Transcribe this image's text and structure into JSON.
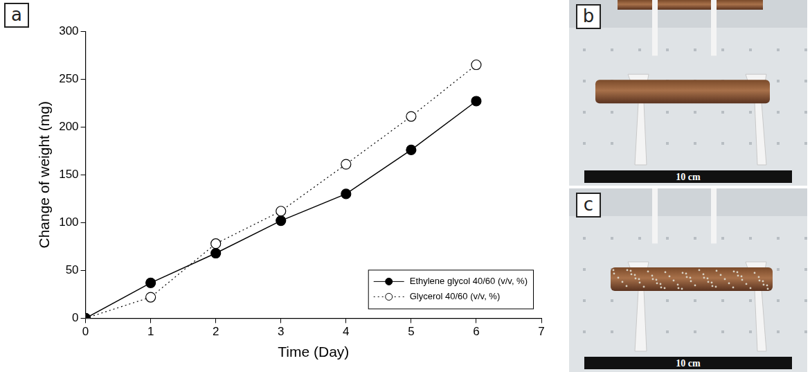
{
  "chart_data": {
    "type": "line",
    "x_label": "Time (Day)",
    "y_label": "Change of weight (mg)",
    "x": [
      0,
      1,
      2,
      3,
      4,
      5,
      6
    ],
    "series": [
      {
        "name": "Ethylene glycol 40/60 (v/v, %)",
        "color": "#000000",
        "marker": "filled_circle",
        "line_style": "solid",
        "values": [
          0,
          37,
          68,
          102,
          130,
          176,
          227
        ]
      },
      {
        "name": "Glycerol 40/60 (v/v, %)",
        "color": "#000000",
        "marker": "open_circle",
        "line_style": "dotted",
        "values": [
          0,
          22,
          78,
          112,
          161,
          211,
          265
        ]
      }
    ],
    "xlim": [
      0,
      7
    ],
    "xticks": [
      0,
      1,
      2,
      3,
      4,
      5,
      6,
      7
    ],
    "ylim": [
      0,
      300
    ],
    "yticks": [
      0,
      50,
      100,
      150,
      200,
      250,
      300
    ],
    "grid": false,
    "legend": "lower right"
  },
  "figure": {
    "panels": [
      {
        "letter": "a"
      },
      {
        "letter": "b",
        "scale_bar": "10 cm"
      },
      {
        "letter": "c",
        "scale_bar": "10 cm"
      }
    ]
  }
}
